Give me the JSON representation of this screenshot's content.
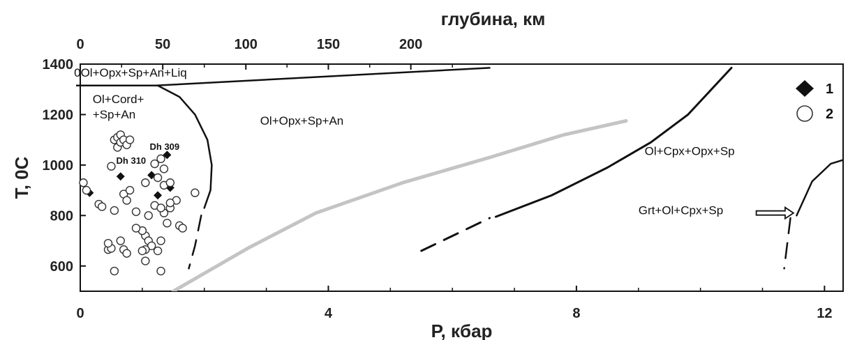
{
  "chart_data": {
    "type": "scatter",
    "xlabel": "P, кбар",
    "ylabel": "T, 0C",
    "top_axis_label": "глубина, км",
    "xlim": [
      0,
      12.3
    ],
    "ylim": [
      500,
      1400
    ],
    "xticks": [
      0,
      4,
      8,
      12
    ],
    "yticks": [
      600,
      800,
      1000,
      1200,
      1400
    ],
    "top_ticks": [
      0,
      50,
      100,
      150,
      200
    ],
    "top_tick_kbar": [
      0,
      1.33,
      2.67,
      4.0,
      5.33
    ],
    "grid": false,
    "legend": {
      "position": "top-right",
      "entries": [
        {
          "marker": "filled-diamond",
          "label": "1"
        },
        {
          "marker": "open-circle",
          "label": "2"
        }
      ]
    },
    "field_labels": [
      {
        "text": "0Ol+Opx+Sp+An+Liq",
        "P": -0.1,
        "T": 1350
      },
      {
        "text": "Ol+Cord+",
        "P": 0.2,
        "T": 1245
      },
      {
        "text": "+Sp+An",
        "P": 0.2,
        "T": 1185
      },
      {
        "text": "Ol+Opx+Sp+An",
        "P": 2.9,
        "T": 1160
      },
      {
        "text": "Ol+Cpx+Opx+Sp",
        "P": 9.1,
        "T": 1040
      },
      {
        "text": "Grt+Ol+Cpx+Sp",
        "P": 9.0,
        "T": 805
      }
    ],
    "sample_labels": [
      {
        "text": "Dh 309",
        "P": 1.12,
        "T": 1060
      },
      {
        "text": "Dh 310",
        "P": 0.58,
        "T": 1005
      }
    ],
    "series": [
      {
        "name": "1",
        "marker": "filled-diamond",
        "points": [
          [
            0.15,
            890
          ],
          [
            0.65,
            955
          ],
          [
            1.15,
            960
          ],
          [
            1.25,
            880
          ],
          [
            1.45,
            910
          ],
          [
            1.4,
            1040
          ]
        ]
      },
      {
        "name": "2",
        "marker": "open-circle",
        "points": [
          [
            0.05,
            930
          ],
          [
            0.1,
            900
          ],
          [
            0.3,
            845
          ],
          [
            0.35,
            835
          ],
          [
            0.5,
            995
          ],
          [
            0.55,
            820
          ],
          [
            0.55,
            1100
          ],
          [
            0.6,
            1110
          ],
          [
            0.6,
            1070
          ],
          [
            0.65,
            1120
          ],
          [
            0.65,
            1090
          ],
          [
            0.7,
            1100
          ],
          [
            0.75,
            1080
          ],
          [
            0.8,
            1100
          ],
          [
            0.7,
            885
          ],
          [
            0.75,
            860
          ],
          [
            0.8,
            900
          ],
          [
            0.55,
            580
          ],
          [
            0.45,
            665
          ],
          [
            0.5,
            670
          ],
          [
            0.45,
            690
          ],
          [
            0.65,
            700
          ],
          [
            0.7,
            665
          ],
          [
            0.75,
            650
          ],
          [
            1.0,
            740
          ],
          [
            1.05,
            720
          ],
          [
            1.1,
            700
          ],
          [
            1.15,
            680
          ],
          [
            1.05,
            665
          ],
          [
            1.0,
            660
          ],
          [
            1.05,
            620
          ],
          [
            1.25,
            660
          ],
          [
            1.3,
            700
          ],
          [
            1.4,
            770
          ],
          [
            1.35,
            810
          ],
          [
            1.2,
            840
          ],
          [
            1.3,
            830
          ],
          [
            1.45,
            830
          ],
          [
            1.55,
            860
          ],
          [
            1.45,
            850
          ],
          [
            1.35,
            920
          ],
          [
            1.45,
            930
          ],
          [
            1.25,
            950
          ],
          [
            1.35,
            985
          ],
          [
            1.2,
            1005
          ],
          [
            1.3,
            1025
          ],
          [
            1.05,
            930
          ],
          [
            1.1,
            800
          ],
          [
            0.9,
            815
          ],
          [
            1.0,
            740
          ],
          [
            0.9,
            750
          ],
          [
            1.6,
            760
          ],
          [
            1.65,
            750
          ],
          [
            1.85,
            890
          ],
          [
            1.3,
            580
          ]
        ]
      }
    ],
    "boundary_curves": [
      {
        "style": "solid",
        "color": "#111111",
        "width": 2.5,
        "points": [
          [
            -0.1,
            1315
          ],
          [
            1.25,
            1315
          ],
          [
            1.6,
            1270
          ],
          [
            1.85,
            1200
          ],
          [
            2.05,
            1100
          ],
          [
            2.12,
            1000
          ],
          [
            2.1,
            900
          ],
          [
            2.0,
            830
          ]
        ]
      },
      {
        "style": "dashed",
        "color": "#111111",
        "width": 2.5,
        "points": [
          [
            1.95,
            800
          ],
          [
            1.85,
            680
          ],
          [
            1.75,
            590
          ]
        ]
      },
      {
        "style": "solid",
        "color": "#111111",
        "width": 2.5,
        "points": [
          [
            1.22,
            1315
          ],
          [
            6.6,
            1385
          ]
        ]
      },
      {
        "style": "solid",
        "color": "#111111",
        "width": 3,
        "points": [
          [
            6.7,
            795
          ],
          [
            7.6,
            880
          ],
          [
            8.5,
            990
          ],
          [
            9.2,
            1090
          ],
          [
            9.8,
            1200
          ],
          [
            10.5,
            1385
          ]
        ]
      },
      {
        "style": "dashed",
        "color": "#111111",
        "width": 3,
        "points": [
          [
            5.5,
            660
          ],
          [
            6.6,
            790
          ]
        ]
      },
      {
        "style": "solid",
        "color": "#c4c4c4",
        "width": 5,
        "points": [
          [
            1.5,
            500
          ],
          [
            2.7,
            670
          ],
          [
            3.8,
            810
          ],
          [
            5.2,
            930
          ],
          [
            6.6,
            1030
          ],
          [
            7.8,
            1120
          ],
          [
            8.8,
            1175
          ]
        ]
      },
      {
        "style": "solid",
        "color": "#111111",
        "width": 2.5,
        "points": [
          [
            11.55,
            800
          ],
          [
            11.8,
            935
          ],
          [
            12.1,
            1005
          ],
          [
            12.3,
            1020
          ]
        ]
      },
      {
        "style": "dashed",
        "color": "#111111",
        "width": 2.5,
        "points": [
          [
            11.45,
            790
          ],
          [
            11.35,
            590
          ]
        ]
      }
    ],
    "annotations": [
      {
        "type": "hollow-arrow",
        "from": [
          10.9,
          810
        ],
        "to": [
          11.5,
          810
        ]
      }
    ]
  }
}
